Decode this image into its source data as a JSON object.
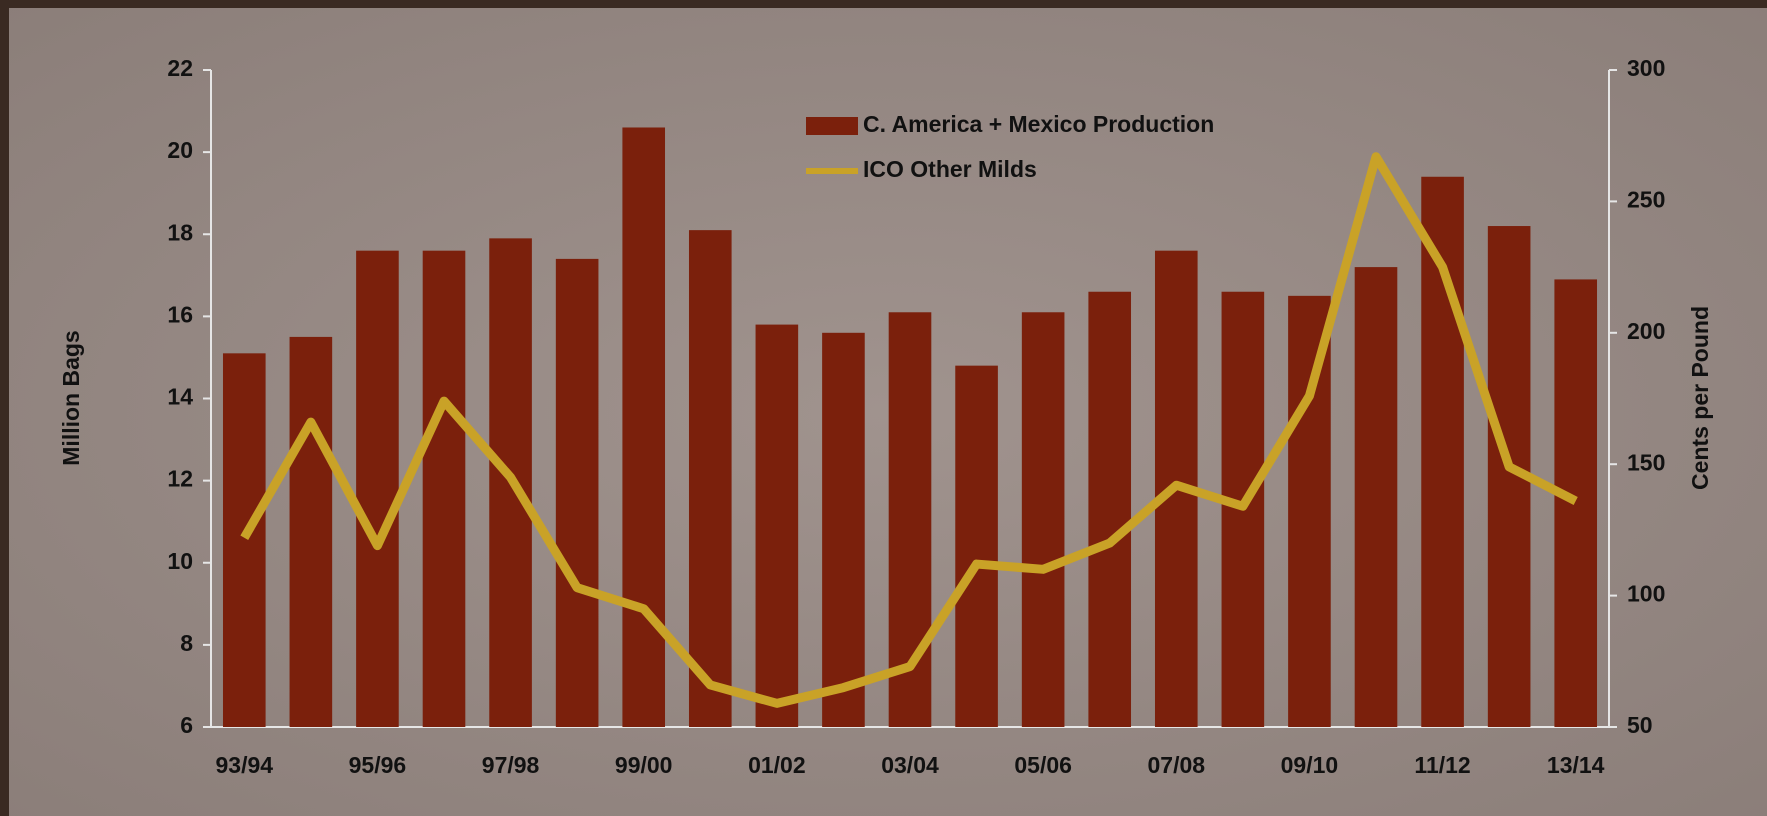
{
  "chart_data": {
    "type": "bar-line",
    "categories": [
      "93/94",
      null,
      "95/96",
      null,
      "97/98",
      null,
      "99/00",
      null,
      "01/02",
      null,
      "03/04",
      null,
      "05/06",
      null,
      "07/08",
      null,
      "09/10",
      null,
      "11/12",
      null,
      "13/14"
    ],
    "series": [
      {
        "name": "C. America + Mexico Production",
        "type": "bar",
        "color": "#7b200c",
        "axis": "y",
        "values": [
          15.1,
          15.5,
          17.6,
          17.6,
          17.9,
          17.4,
          20.6,
          18.1,
          15.8,
          15.6,
          16.1,
          14.8,
          16.1,
          16.6,
          17.6,
          16.6,
          16.5,
          17.2,
          19.4,
          18.2,
          16.9
        ]
      },
      {
        "name": "ICO Other Milds",
        "type": "line",
        "color": "#c9a227",
        "axis": "y2",
        "values": [
          122,
          166,
          119,
          174,
          145,
          103,
          95,
          66,
          59,
          65,
          73,
          112,
          110,
          120,
          142,
          134,
          176,
          267,
          225,
          149,
          136
        ]
      }
    ],
    "ylabel": "Million Bags",
    "y2label": "Cents per Pound",
    "ylim": [
      6,
      22
    ],
    "yticks": [
      6,
      8,
      10,
      12,
      14,
      16,
      18,
      20,
      22
    ],
    "y2lim": [
      50,
      300
    ],
    "y2ticks": [
      50,
      100,
      150,
      200,
      250,
      300
    ]
  }
}
